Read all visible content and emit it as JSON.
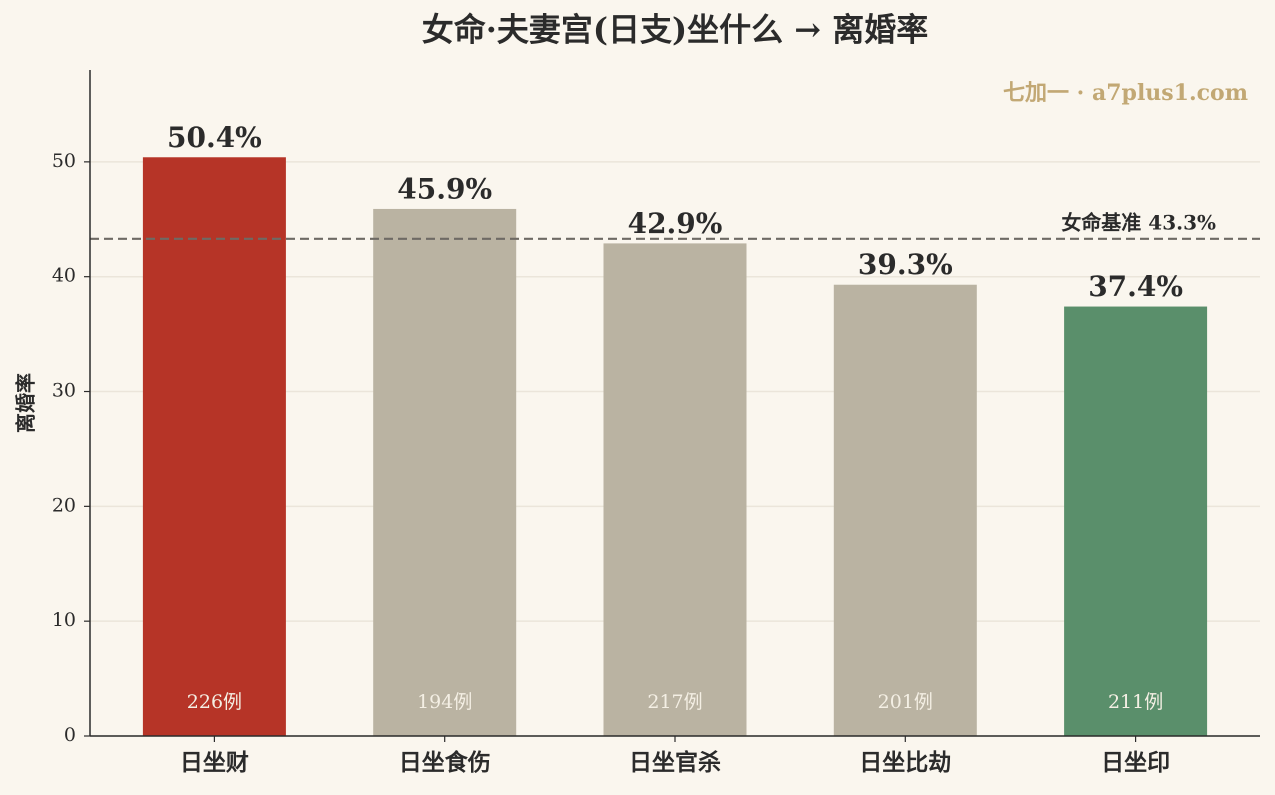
{
  "chart_data": {
    "type": "bar",
    "title": "女命·夫妻宫(日支)坐什么 → 离婚率",
    "watermark": "七加一 · a7plus1.com",
    "y_label": "离婚率",
    "categories": [
      "日坐财",
      "日坐食伤",
      "日坐官杀",
      "日坐比劫",
      "日坐印"
    ],
    "values": [
      50.4,
      45.9,
      42.9,
      39.3,
      37.4
    ],
    "value_labels": [
      "50.4%",
      "45.9%",
      "42.9%",
      "39.3%",
      "37.4%"
    ],
    "count_labels": [
      "226例",
      "194例",
      "217例",
      "201例",
      "211例"
    ],
    "colors": [
      "#b63427",
      "#bab3a2",
      "#bab3a2",
      "#bab3a2",
      "#5a8f6b"
    ],
    "baseline": {
      "value": 43.3,
      "label": "女命基准 43.3%"
    },
    "ylim": [
      0,
      58
    ],
    "yticks": [
      0,
      10,
      20,
      30,
      40,
      50
    ],
    "grid": true
  }
}
